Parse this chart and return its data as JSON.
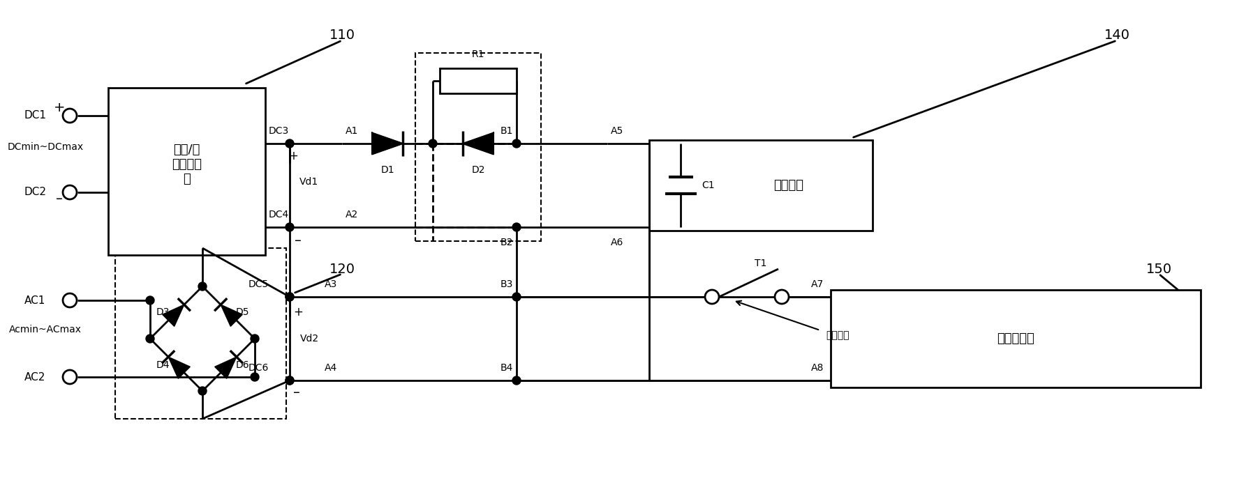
{
  "bg_color": "#ffffff",
  "line_color": "#000000",
  "figsize": [
    17.85,
    6.96
  ],
  "dpi": 100,
  "xlim": [
    0,
    1785
  ],
  "ylim": [
    0,
    696
  ]
}
